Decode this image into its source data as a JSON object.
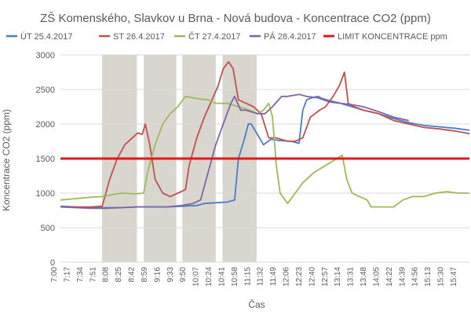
{
  "chart_data": {
    "type": "line",
    "title": "ZŠ Komenského, Slavkov u Brna - Nová budova - Koncentrace CO2 (ppm)",
    "xlabel": "Čas",
    "ylabel": "Koncentrace CO2 (ppm)",
    "ylim": [
      0,
      3000
    ],
    "yticks": [
      0,
      500,
      1000,
      1500,
      2000,
      2500,
      3000
    ],
    "xlim_minutes": [
      420,
      960
    ],
    "xtick_labels": [
      "7:00",
      "7:17",
      "7:34",
      "7:51",
      "8:08",
      "8:25",
      "8:42",
      "8:59",
      "9:16",
      "9:33",
      "9:50",
      "10:07",
      "10:24",
      "10:41",
      "10:58",
      "11:15",
      "11:32",
      "11:49",
      "12:06",
      "12:23",
      "12:40",
      "12:57",
      "13:14",
      "13:31",
      "13:48",
      "14:05",
      "14:22",
      "14:39",
      "14:56",
      "15:13",
      "15:30",
      "15:47"
    ],
    "grid": "horizontal",
    "legend_position": "top",
    "shaded_periods_minutes": [
      [
        475,
        521
      ],
      [
        530,
        573
      ],
      [
        581,
        625
      ],
      [
        634,
        679
      ]
    ],
    "limit": {
      "name": "LIMIT KONCENTRACE ppm",
      "value": 1500,
      "color": "#e0191b"
    },
    "series": [
      {
        "name": "ÚT 25.4.2017",
        "color": "#4a7cc7",
        "points": [
          [
            420,
            810
          ],
          [
            440,
            800
          ],
          [
            460,
            790
          ],
          [
            480,
            790
          ],
          [
            500,
            790
          ],
          [
            520,
            800
          ],
          [
            540,
            800
          ],
          [
            560,
            800
          ],
          [
            580,
            810
          ],
          [
            600,
            820
          ],
          [
            610,
            850
          ],
          [
            625,
            860
          ],
          [
            640,
            870
          ],
          [
            650,
            900
          ],
          [
            655,
            1500
          ],
          [
            662,
            1750
          ],
          [
            668,
            2000
          ],
          [
            672,
            2000
          ],
          [
            680,
            1850
          ],
          [
            688,
            1700
          ],
          [
            698,
            1780
          ],
          [
            710,
            1760
          ],
          [
            725,
            1750
          ],
          [
            735,
            1720
          ],
          [
            740,
            2200
          ],
          [
            745,
            2350
          ],
          [
            752,
            2380
          ],
          [
            760,
            2400
          ],
          [
            765,
            2370
          ],
          [
            775,
            2340
          ],
          [
            790,
            2300
          ],
          [
            805,
            2250
          ],
          [
            820,
            2200
          ],
          [
            840,
            2150
          ],
          [
            860,
            2080
          ],
          [
            880,
            2020
          ],
          [
            900,
            1980
          ],
          [
            920,
            1960
          ],
          [
            940,
            1940
          ],
          [
            960,
            1910
          ]
        ]
      },
      {
        "name": "ST 26.4.2017",
        "color": "#c0504d",
        "points": [
          [
            420,
            800
          ],
          [
            440,
            800
          ],
          [
            460,
            800
          ],
          [
            475,
            810
          ],
          [
            480,
            1000
          ],
          [
            485,
            1200
          ],
          [
            495,
            1500
          ],
          [
            505,
            1700
          ],
          [
            515,
            1800
          ],
          [
            522,
            1870
          ],
          [
            528,
            1850
          ],
          [
            532,
            2000
          ],
          [
            538,
            1700
          ],
          [
            545,
            1200
          ],
          [
            555,
            1000
          ],
          [
            565,
            950
          ],
          [
            575,
            1000
          ],
          [
            585,
            1050
          ],
          [
            590,
            1400
          ],
          [
            600,
            1800
          ],
          [
            610,
            2100
          ],
          [
            620,
            2350
          ],
          [
            628,
            2550
          ],
          [
            635,
            2800
          ],
          [
            642,
            2900
          ],
          [
            648,
            2800
          ],
          [
            655,
            2350
          ],
          [
            665,
            2300
          ],
          [
            675,
            2250
          ],
          [
            685,
            2150
          ],
          [
            695,
            1800
          ],
          [
            705,
            1800
          ],
          [
            720,
            1750
          ],
          [
            730,
            1750
          ],
          [
            740,
            1800
          ],
          [
            750,
            2100
          ],
          [
            762,
            2200
          ],
          [
            770,
            2250
          ],
          [
            780,
            2400
          ],
          [
            788,
            2550
          ],
          [
            795,
            2750
          ],
          [
            800,
            2300
          ],
          [
            808,
            2250
          ],
          [
            820,
            2200
          ],
          [
            840,
            2150
          ],
          [
            860,
            2050
          ],
          [
            880,
            2000
          ],
          [
            900,
            1950
          ],
          [
            920,
            1930
          ],
          [
            940,
            1900
          ],
          [
            960,
            1860
          ]
        ]
      },
      {
        "name": "ČT 27.4.2017",
        "color": "#9bbb59",
        "points": [
          [
            420,
            900
          ],
          [
            440,
            920
          ],
          [
            460,
            940
          ],
          [
            475,
            950
          ],
          [
            490,
            980
          ],
          [
            500,
            1000
          ],
          [
            520,
            990
          ],
          [
            530,
            1000
          ],
          [
            535,
            1300
          ],
          [
            545,
            1700
          ],
          [
            555,
            2000
          ],
          [
            565,
            2150
          ],
          [
            575,
            2250
          ],
          [
            585,
            2400
          ],
          [
            595,
            2380
          ],
          [
            605,
            2360
          ],
          [
            615,
            2350
          ],
          [
            625,
            2300
          ],
          [
            640,
            2300
          ],
          [
            655,
            2250
          ],
          [
            670,
            2200
          ],
          [
            680,
            2150
          ],
          [
            688,
            2200
          ],
          [
            695,
            2300
          ],
          [
            700,
            2100
          ],
          [
            705,
            1400
          ],
          [
            710,
            1000
          ],
          [
            720,
            850
          ],
          [
            730,
            1000
          ],
          [
            740,
            1150
          ],
          [
            755,
            1300
          ],
          [
            770,
            1400
          ],
          [
            785,
            1500
          ],
          [
            792,
            1550
          ],
          [
            798,
            1200
          ],
          [
            805,
            1000
          ],
          [
            815,
            950
          ],
          [
            825,
            900
          ],
          [
            830,
            800
          ],
          [
            845,
            800
          ],
          [
            860,
            800
          ],
          [
            872,
            900
          ],
          [
            885,
            950
          ],
          [
            900,
            950
          ],
          [
            915,
            1000
          ],
          [
            930,
            1020
          ],
          [
            945,
            1000
          ],
          [
            960,
            1000
          ]
        ]
      },
      {
        "name": "PÁ 28.4.2017",
        "color": "#8064a2",
        "points": [
          [
            420,
            800
          ],
          [
            440,
            790
          ],
          [
            460,
            780
          ],
          [
            480,
            780
          ],
          [
            500,
            790
          ],
          [
            520,
            800
          ],
          [
            540,
            800
          ],
          [
            560,
            800
          ],
          [
            580,
            820
          ],
          [
            595,
            850
          ],
          [
            605,
            900
          ],
          [
            615,
            1300
          ],
          [
            625,
            1700
          ],
          [
            635,
            2000
          ],
          [
            645,
            2300
          ],
          [
            650,
            2400
          ],
          [
            658,
            2200
          ],
          [
            665,
            2200
          ],
          [
            680,
            2150
          ],
          [
            690,
            2150
          ],
          [
            700,
            2250
          ],
          [
            712,
            2400
          ],
          [
            720,
            2400
          ],
          [
            735,
            2430
          ],
          [
            745,
            2400
          ],
          [
            760,
            2380
          ],
          [
            775,
            2320
          ],
          [
            790,
            2300
          ],
          [
            805,
            2280
          ],
          [
            820,
            2250
          ],
          [
            840,
            2180
          ],
          [
            860,
            2100
          ],
          [
            880,
            2050
          ]
        ]
      }
    ]
  }
}
